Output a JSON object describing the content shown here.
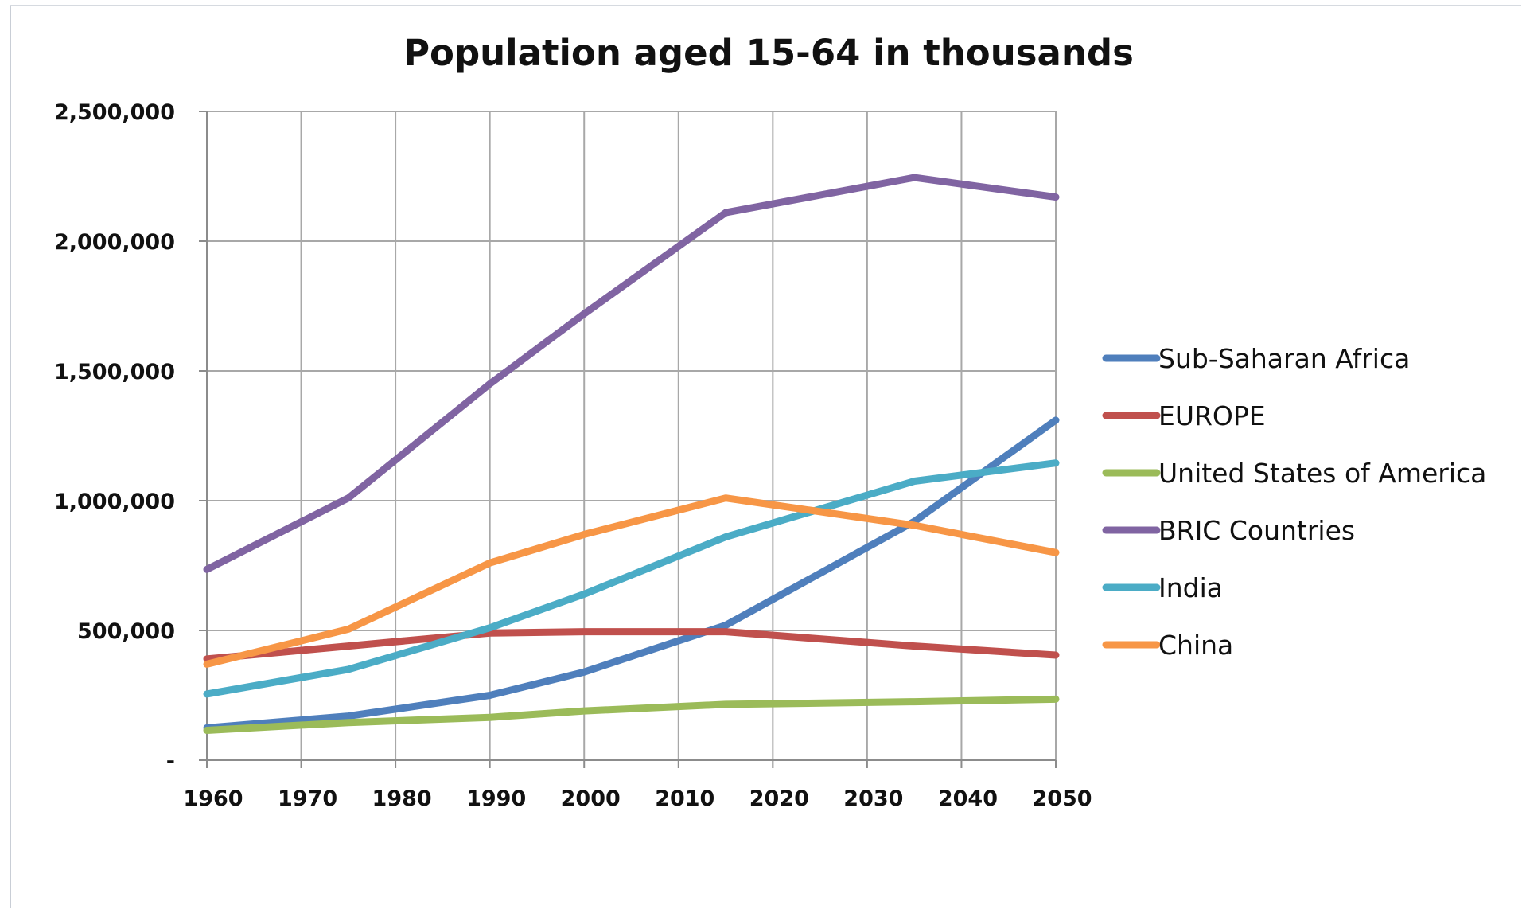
{
  "chart_data": {
    "type": "line",
    "title": "Population aged 15-64 in thousands",
    "xlabel": "",
    "ylabel": "",
    "x_ticks": [
      "1960",
      "1970",
      "1980",
      "1990",
      "2000",
      "2010",
      "2020",
      "2030",
      "2040",
      "2050"
    ],
    "y_ticks": [
      {
        "value": 0,
        "label": "-"
      },
      {
        "value": 500000,
        "label": "500,000"
      },
      {
        "value": 1000000,
        "label": "1,000,000"
      },
      {
        "value": 1500000,
        "label": "1,500,000"
      },
      {
        "value": 2000000,
        "label": "2,000,000"
      },
      {
        "value": 2500000,
        "label": "2,500,000"
      }
    ],
    "xlim": [
      1960,
      2050
    ],
    "ylim": [
      0,
      2500000
    ],
    "grid": true,
    "legend_position": "right",
    "series": [
      {
        "name": "Sub-Saharan Africa",
        "color": "#4f7fbc",
        "points": [
          [
            1960,
            125000
          ],
          [
            1975,
            170000
          ],
          [
            1990,
            250000
          ],
          [
            2000,
            340000
          ],
          [
            2015,
            520000
          ],
          [
            2035,
            920000
          ],
          [
            2050,
            1310000
          ]
        ]
      },
      {
        "name": "EUROPE",
        "color": "#c0504d",
        "points": [
          [
            1960,
            390000
          ],
          [
            1975,
            440000
          ],
          [
            1990,
            490000
          ],
          [
            2000,
            495000
          ],
          [
            2015,
            495000
          ],
          [
            2035,
            440000
          ],
          [
            2050,
            405000
          ]
        ]
      },
      {
        "name": "United States of America",
        "color": "#9bbb59",
        "points": [
          [
            1960,
            115000
          ],
          [
            1975,
            145000
          ],
          [
            1990,
            165000
          ],
          [
            2000,
            190000
          ],
          [
            2015,
            215000
          ],
          [
            2035,
            225000
          ],
          [
            2050,
            235000
          ]
        ]
      },
      {
        "name": "BRIC Countries",
        "color": "#8064a2",
        "points": [
          [
            1960,
            735000
          ],
          [
            1975,
            1010000
          ],
          [
            1990,
            1450000
          ],
          [
            2000,
            1720000
          ],
          [
            2015,
            2110000
          ],
          [
            2035,
            2245000
          ],
          [
            2050,
            2170000
          ]
        ]
      },
      {
        "name": "India",
        "color": "#4bacc6",
        "points": [
          [
            1960,
            255000
          ],
          [
            1975,
            350000
          ],
          [
            1990,
            510000
          ],
          [
            2000,
            640000
          ],
          [
            2015,
            860000
          ],
          [
            2035,
            1075000
          ],
          [
            2050,
            1145000
          ]
        ]
      },
      {
        "name": "China",
        "color": "#f79646",
        "points": [
          [
            1960,
            370000
          ],
          [
            1975,
            505000
          ],
          [
            1990,
            760000
          ],
          [
            2000,
            870000
          ],
          [
            2015,
            1010000
          ],
          [
            2035,
            905000
          ],
          [
            2050,
            800000
          ]
        ]
      }
    ]
  }
}
